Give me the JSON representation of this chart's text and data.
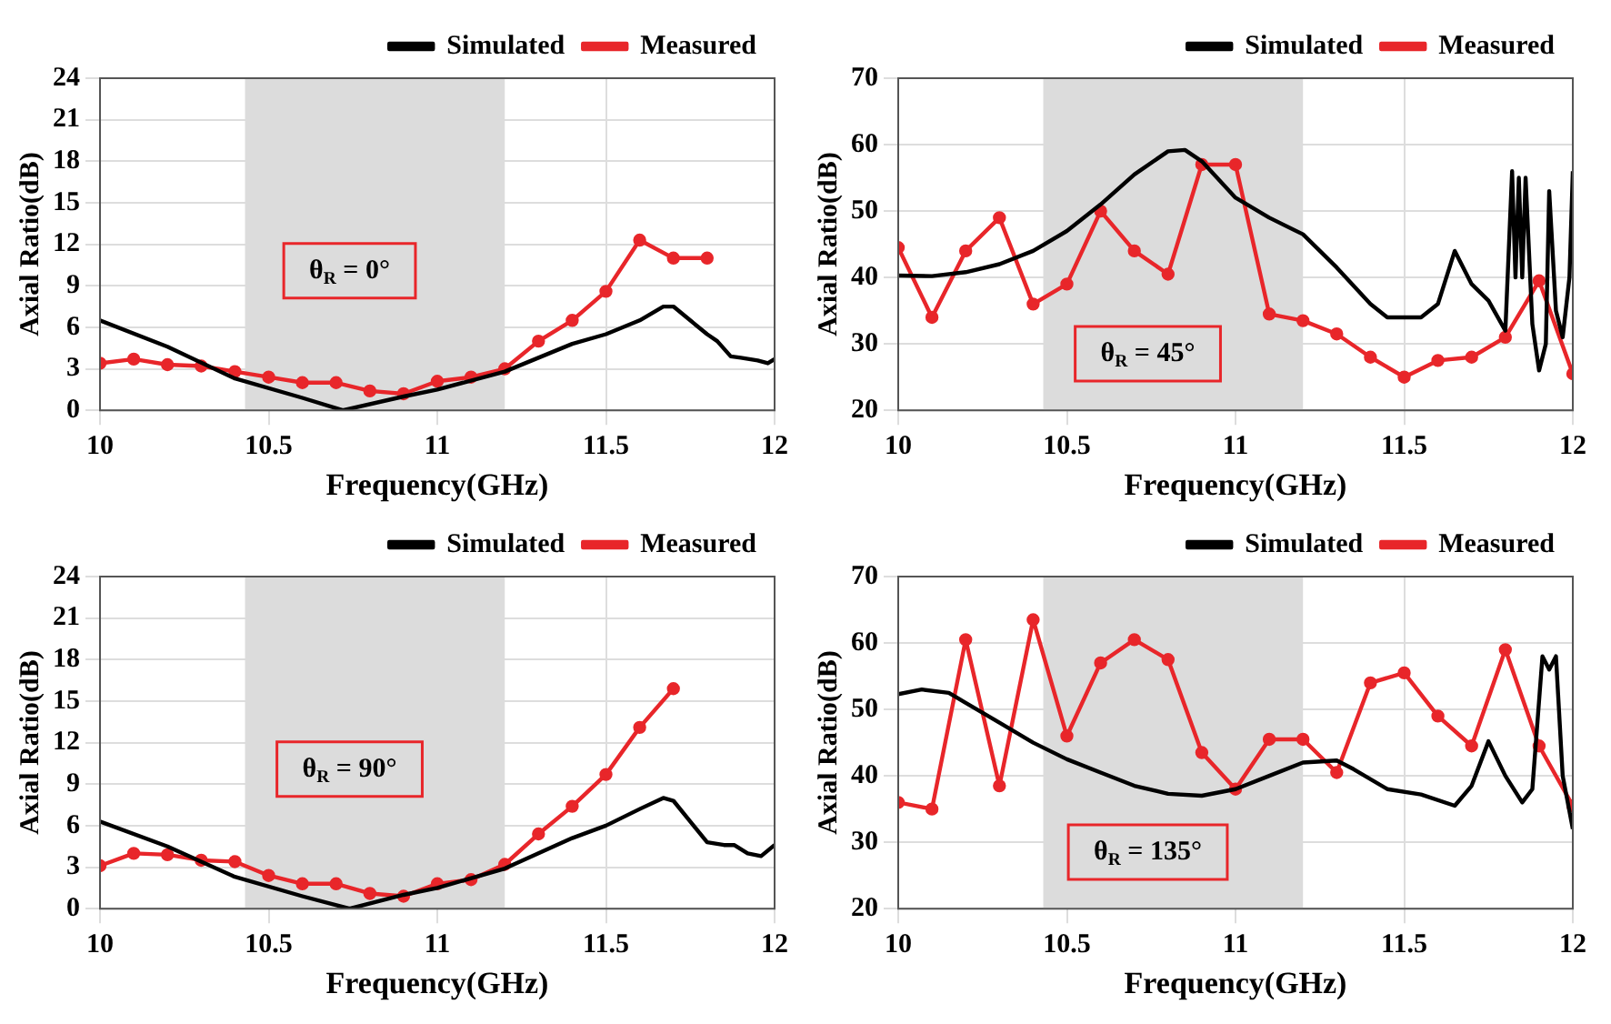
{
  "chart_data": [
    {
      "type": "line",
      "xlabel": "Frequency(GHz)",
      "ylabel": "Axial Ratio(dB)",
      "xlim": [
        10,
        12
      ],
      "xticks": [
        10,
        10.5,
        11,
        11.5,
        12
      ],
      "ylim": [
        0,
        24
      ],
      "yticks": [
        0,
        3,
        6,
        9,
        12,
        15,
        18,
        21,
        24
      ],
      "grid": true,
      "legend": "top right",
      "annotations": [
        "θ$_{R}$ = 0°"
      ],
      "bands": [
        {
          "axis": "x",
          "from": 10.43,
          "to": 11.2,
          "color": "#dcdcdc"
        }
      ],
      "series": [
        {
          "name": "Simulated",
          "color": "#000000",
          "marker": "none",
          "x": [
            10,
            10.2,
            10.4,
            10.6,
            10.72,
            10.9,
            11,
            11.2,
            11.3,
            11.4,
            11.5,
            11.6,
            11.67,
            11.7,
            11.75,
            11.8,
            11.83,
            11.87,
            11.9,
            11.95,
            11.98,
            12
          ],
          "values": [
            6.5,
            4.6,
            2.3,
            0.9,
            0,
            1.0,
            1.5,
            2.8,
            3.8,
            4.8,
            5.5,
            6.5,
            7.5,
            7.5,
            6.5,
            5.5,
            5.0,
            3.9,
            3.8,
            3.6,
            3.4,
            3.7
          ]
        },
        {
          "name": "Measured",
          "color": "#e8262a",
          "marker": "circle",
          "x": [
            10,
            10.1,
            10.2,
            10.3,
            10.4,
            10.5,
            10.6,
            10.7,
            10.8,
            10.9,
            11,
            11.1,
            11.2,
            11.3,
            11.4,
            11.5,
            11.6,
            11.7,
            11.8
          ],
          "values": [
            3.4,
            3.7,
            3.3,
            3.2,
            2.8,
            2.4,
            2.0,
            2.0,
            1.4,
            1.2,
            2.1,
            2.4,
            3.0,
            5.0,
            6.5,
            8.6,
            12.3,
            11.0,
            11.0
          ]
        }
      ]
    },
    {
      "type": "line",
      "xlabel": "Frequency(GHz)",
      "ylabel": "Axial Ratio(dB)",
      "xlim": [
        10,
        12
      ],
      "xticks": [
        10,
        10.5,
        11,
        11.5,
        12
      ],
      "ylim": [
        20,
        70
      ],
      "yticks": [
        20,
        30,
        40,
        50,
        60,
        70
      ],
      "grid": true,
      "legend": "top right",
      "annotations": [
        "θ$_{R}$ = 45°"
      ],
      "bands": [
        {
          "axis": "x",
          "from": 10.43,
          "to": 11.2,
          "color": "#dcdcdc"
        }
      ],
      "series": [
        {
          "name": "Simulated",
          "color": "#000000",
          "marker": "none",
          "x": [
            10,
            10.1,
            10.2,
            10.3,
            10.4,
            10.5,
            10.6,
            10.7,
            10.8,
            10.85,
            10.9,
            11,
            11.1,
            11.2,
            11.3,
            11.4,
            11.45,
            11.55,
            11.6,
            11.65,
            11.7,
            11.75,
            11.8,
            11.82,
            11.83,
            11.84,
            11.85,
            11.86,
            11.88,
            11.9,
            11.92,
            11.93,
            11.95,
            11.97,
            11.99,
            12
          ],
          "values": [
            40.3,
            40.2,
            40.8,
            42,
            44,
            47,
            51,
            55.5,
            59,
            59.2,
            57.5,
            52,
            49,
            46.5,
            41.5,
            36,
            34,
            34,
            36,
            44,
            39,
            36.5,
            32,
            56,
            40,
            55,
            40,
            55,
            33,
            26,
            30,
            53,
            35,
            31,
            40,
            56
          ]
        },
        {
          "name": "Measured",
          "color": "#e8262a",
          "marker": "circle",
          "x": [
            10,
            10.1,
            10.2,
            10.3,
            10.4,
            10.5,
            10.6,
            10.7,
            10.8,
            10.9,
            11,
            11.1,
            11.2,
            11.3,
            11.4,
            11.5,
            11.6,
            11.7,
            11.8,
            11.9,
            12
          ],
          "values": [
            44.5,
            34,
            44,
            49,
            36,
            39,
            50,
            44,
            40.5,
            57,
            57,
            34.5,
            33.5,
            31.5,
            28,
            25,
            27.5,
            28,
            31,
            39.5,
            25.5
          ]
        }
      ]
    },
    {
      "type": "line",
      "xlabel": "Frequency(GHz)",
      "ylabel": "Axial Ratio(dB)",
      "xlim": [
        10,
        12
      ],
      "xticks": [
        10,
        10.5,
        11,
        11.5,
        12
      ],
      "ylim": [
        0,
        24
      ],
      "yticks": [
        0,
        3,
        6,
        9,
        12,
        15,
        18,
        21,
        24
      ],
      "grid": true,
      "legend": "top right",
      "annotations": [
        "θ$_{R}$ = 90°"
      ],
      "bands": [
        {
          "axis": "x",
          "from": 10.43,
          "to": 11.2,
          "color": "#dcdcdc"
        }
      ],
      "series": [
        {
          "name": "Simulated",
          "color": "#000000",
          "marker": "none",
          "x": [
            10,
            10.2,
            10.4,
            10.6,
            10.74,
            10.9,
            11,
            11.2,
            11.3,
            11.4,
            11.5,
            11.6,
            11.67,
            11.7,
            11.75,
            11.8,
            11.85,
            11.88,
            11.92,
            11.96,
            12
          ],
          "values": [
            6.3,
            4.5,
            2.3,
            0.9,
            0,
            1.0,
            1.5,
            2.9,
            4.0,
            5.1,
            6.0,
            7.2,
            8.0,
            7.8,
            6.3,
            4.8,
            4.6,
            4.6,
            4.0,
            3.8,
            4.6
          ]
        },
        {
          "name": "Measured",
          "color": "#e8262a",
          "marker": "circle",
          "x": [
            10,
            10.1,
            10.2,
            10.3,
            10.4,
            10.5,
            10.6,
            10.7,
            10.8,
            10.9,
            11,
            11.1,
            11.2,
            11.3,
            11.4,
            11.5,
            11.6,
            11.7
          ],
          "values": [
            3.1,
            4.0,
            3.9,
            3.5,
            3.4,
            2.4,
            1.8,
            1.8,
            1.1,
            0.9,
            1.8,
            2.1,
            3.2,
            5.4,
            7.4,
            9.7,
            13.1,
            15.9
          ]
        }
      ]
    },
    {
      "type": "line",
      "xlabel": "Frequency(GHz)",
      "ylabel": "Axial Ratio(dB)",
      "xlim": [
        10,
        12
      ],
      "xticks": [
        10,
        10.5,
        11,
        11.5,
        12
      ],
      "ylim": [
        20,
        70
      ],
      "yticks": [
        20,
        30,
        40,
        50,
        60,
        70
      ],
      "grid": true,
      "legend": "top right",
      "annotations": [
        "θ$_{R}$ = 135°"
      ],
      "bands": [
        {
          "axis": "x",
          "from": 10.43,
          "to": 11.2,
          "color": "#dcdcdc"
        }
      ],
      "series": [
        {
          "name": "Simulated",
          "color": "#000000",
          "marker": "none",
          "x": [
            10,
            10.07,
            10.15,
            10.2,
            10.3,
            10.4,
            10.5,
            10.6,
            10.7,
            10.8,
            10.9,
            11,
            11.1,
            11.2,
            11.3,
            11.35,
            11.45,
            11.55,
            11.65,
            11.7,
            11.75,
            11.8,
            11.85,
            11.88,
            11.91,
            11.93,
            11.95,
            11.97,
            12
          ],
          "values": [
            52.3,
            53,
            52.5,
            51,
            48,
            45,
            42.5,
            40.5,
            38.5,
            37.3,
            37,
            38,
            40,
            42,
            42.3,
            41,
            38,
            37.2,
            35.5,
            38.5,
            45.2,
            40,
            36,
            38,
            58,
            56,
            58,
            40,
            32
          ]
        },
        {
          "name": "Measured",
          "color": "#e8262a",
          "marker": "circle",
          "x": [
            10,
            10.1,
            10.2,
            10.3,
            10.4,
            10.5,
            10.6,
            10.7,
            10.8,
            10.9,
            11,
            11.1,
            11.2,
            11.3,
            11.4,
            11.5,
            11.6,
            11.7,
            11.8,
            11.9,
            12
          ],
          "values": [
            36,
            35,
            60.5,
            38.5,
            63.5,
            46,
            57,
            60.5,
            57.5,
            43.5,
            38,
            45.5,
            45.5,
            40.5,
            54,
            55.5,
            49,
            44.5,
            59,
            44.5,
            35.5
          ]
        }
      ]
    }
  ]
}
